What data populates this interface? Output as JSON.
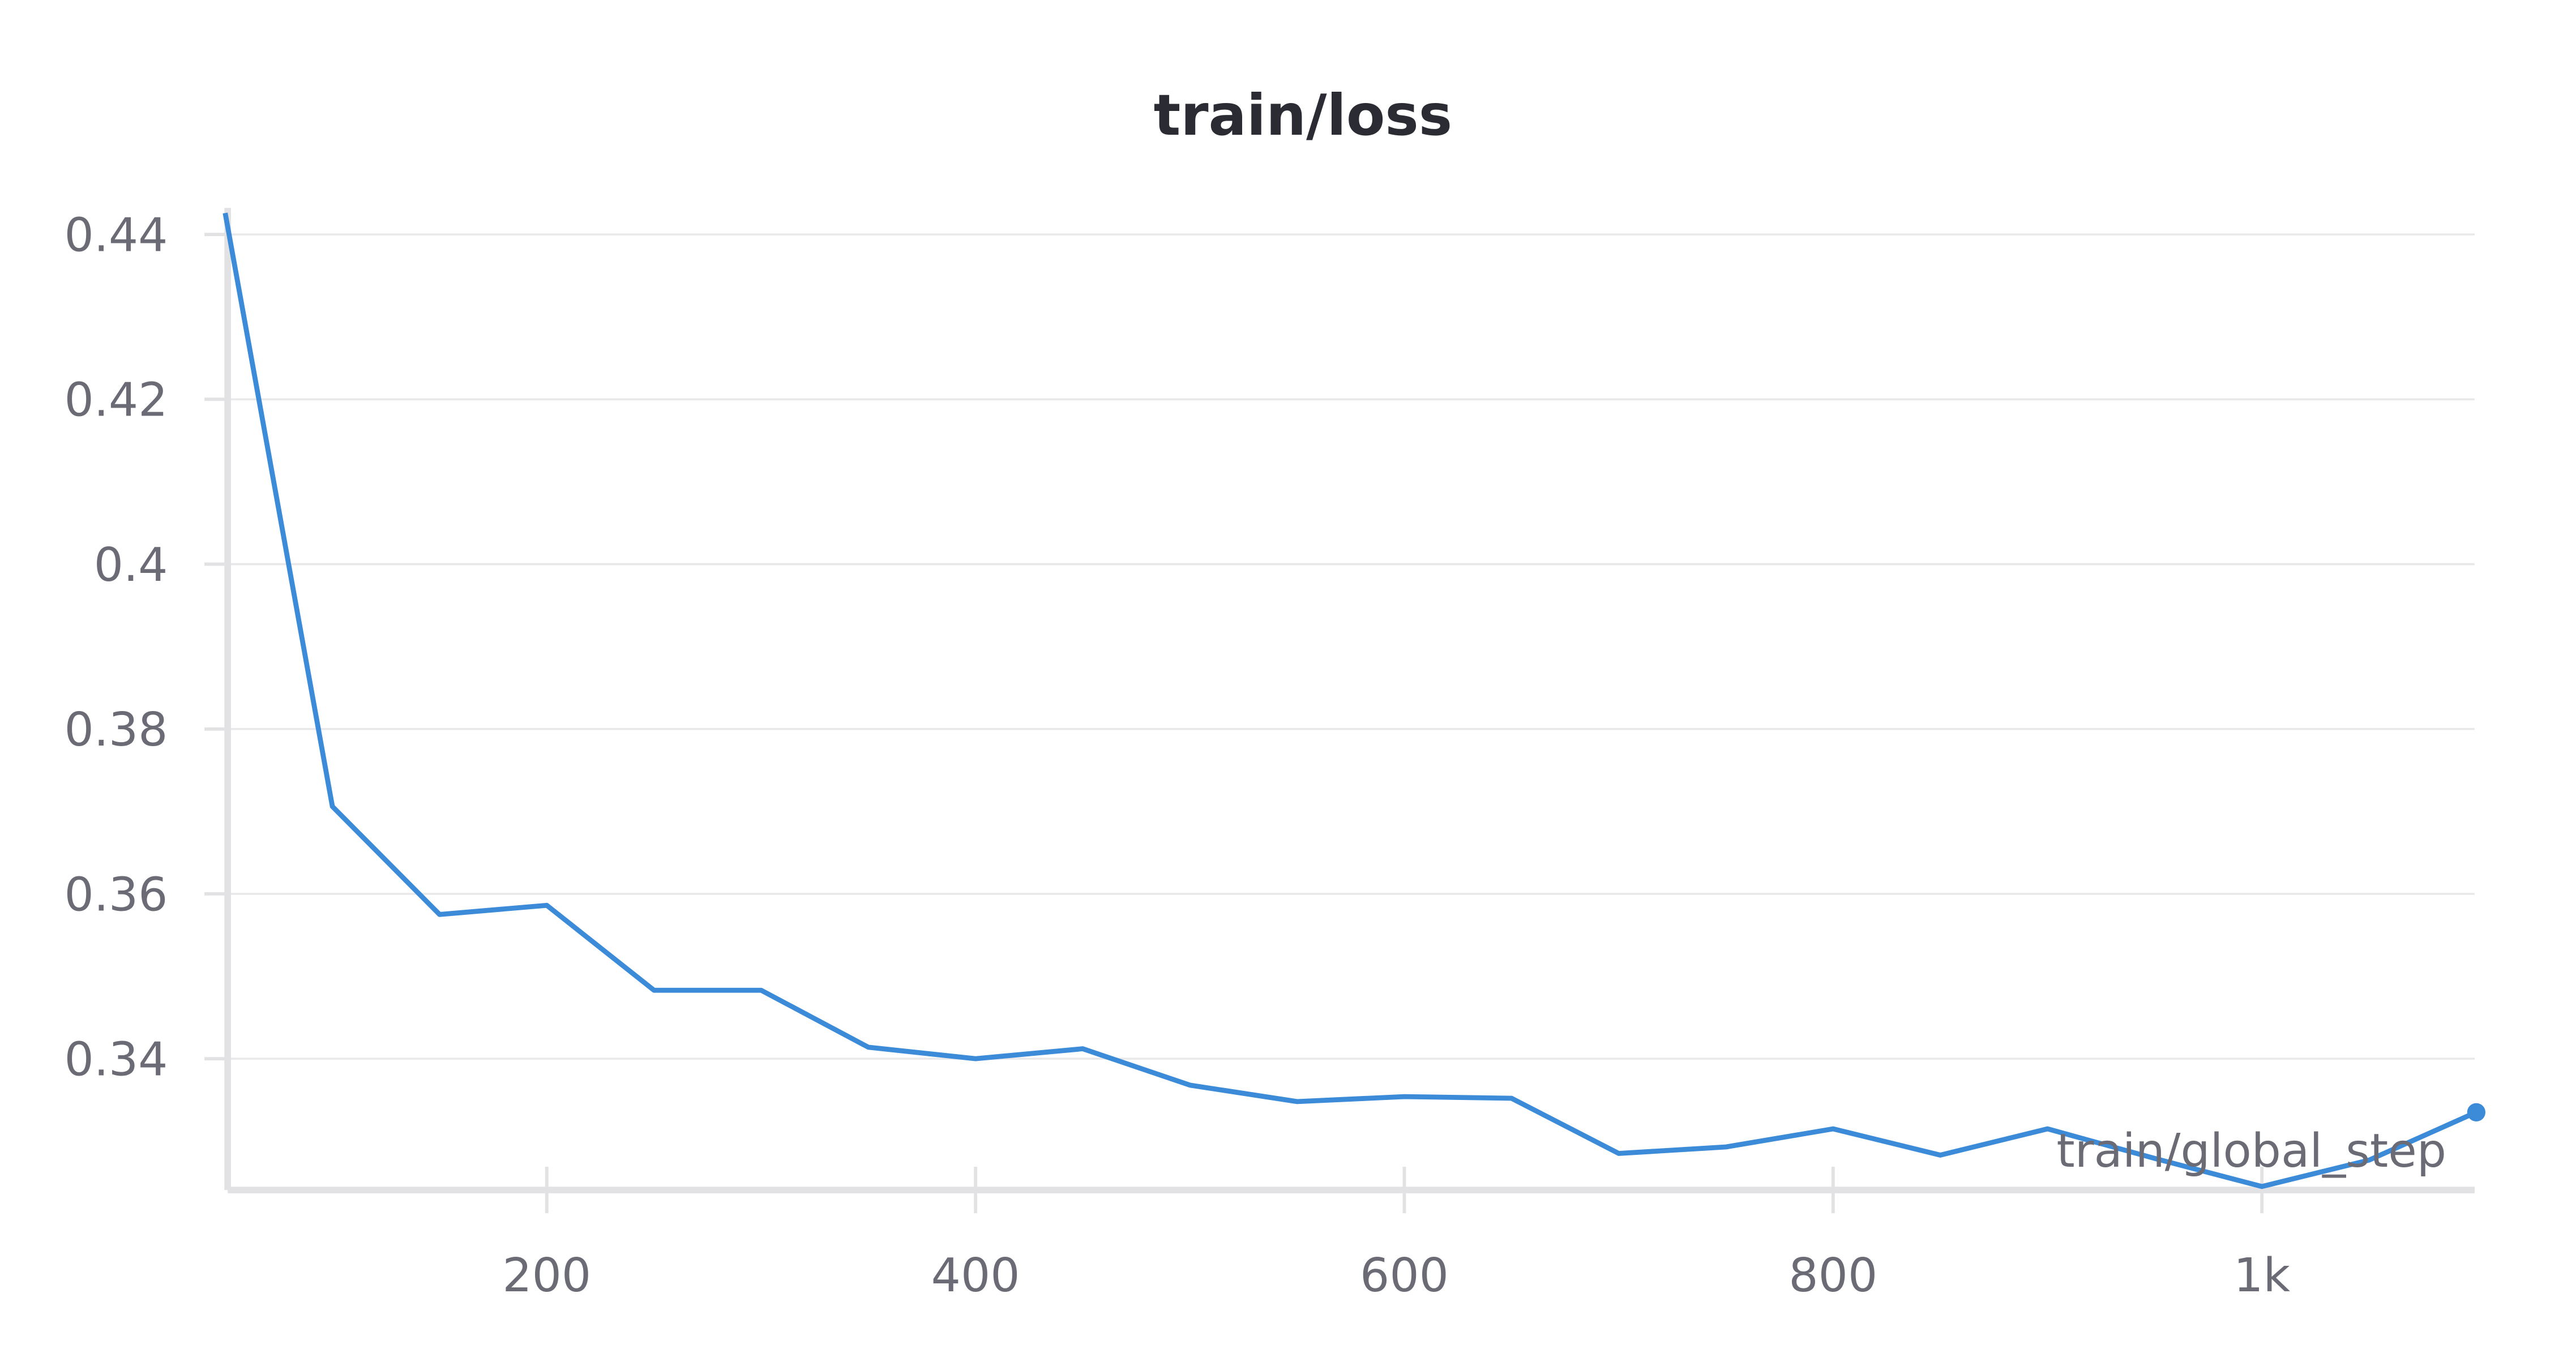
{
  "chart_data": {
    "type": "line",
    "title": "train/loss",
    "xlabel": "train/global_step",
    "ylabel": "",
    "xlim": [
      50,
      1100
    ],
    "ylim": [
      0.324,
      0.443
    ],
    "grid": true,
    "x_ticks": [
      200,
      400,
      600,
      800,
      1000
    ],
    "x_tick_labels": [
      "200",
      "400",
      "600",
      "800",
      "1k"
    ],
    "y_ticks": [
      0.34,
      0.36,
      0.38,
      0.4,
      0.42,
      0.44
    ],
    "y_tick_labels": [
      "0.34",
      "0.36",
      "0.38",
      "0.4",
      "0.42",
      "0.44"
    ],
    "series": [
      {
        "color": "#3b8bd9",
        "x": [
          50,
          100,
          150,
          200,
          250,
          300,
          350,
          400,
          450,
          500,
          550,
          600,
          650,
          700,
          750,
          800,
          850,
          900,
          950,
          1000,
          1050,
          1100
        ],
        "y": [
          0.4426,
          0.3706,
          0.3575,
          0.3586,
          0.3483,
          0.3483,
          0.3414,
          0.34,
          0.3412,
          0.3368,
          0.3348,
          0.3354,
          0.3352,
          0.3285,
          0.3293,
          0.3315,
          0.3283,
          0.3315,
          0.3279,
          0.3245,
          0.3277,
          0.3335
        ]
      }
    ]
  }
}
